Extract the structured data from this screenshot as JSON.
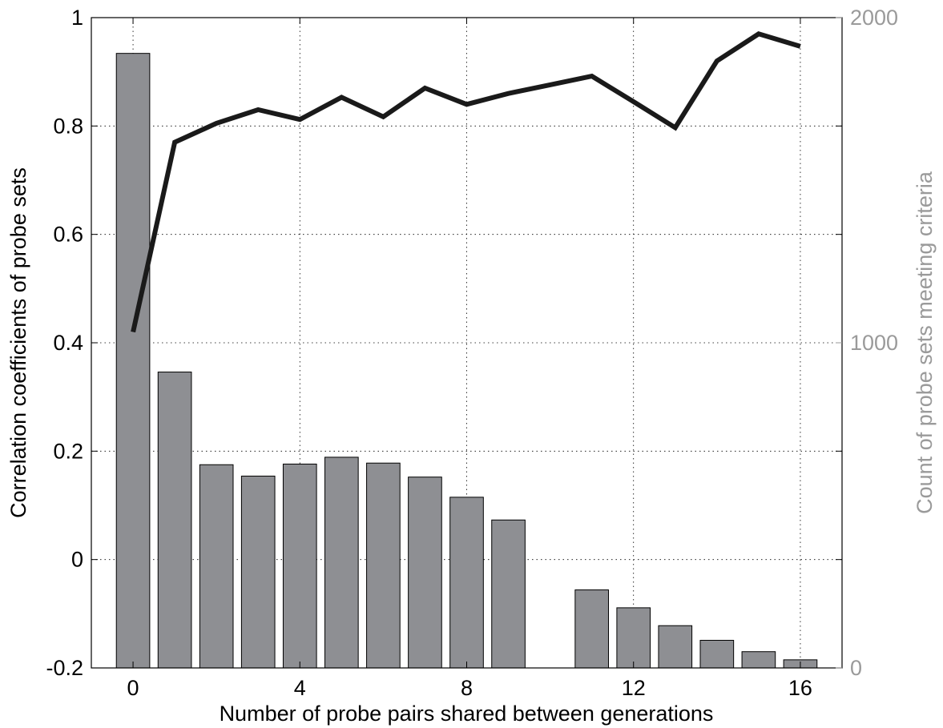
{
  "chart_data": {
    "type": "bar+line",
    "title": "",
    "xlabel": "Number of probe pairs shared between generations",
    "ylabel": "Correlation coefficients of probe sets",
    "y2label": "Count of probe sets meeting criteria",
    "xlim": [
      -1,
      17
    ],
    "ylim": [
      -0.2,
      1.0
    ],
    "y2lim": [
      0,
      2000
    ],
    "xticks": [
      "0",
      "4",
      "8",
      "12",
      "16"
    ],
    "yticks": [
      "-0.2",
      "0",
      "0.2",
      "0.4",
      "0.6",
      "0.8",
      "1"
    ],
    "y2ticks": [
      "0",
      "1000",
      "2000"
    ],
    "grid": true,
    "colors": {
      "bars": "#8e8f93",
      "line": "#1a1a1a",
      "axis_right": "#9a9a9a",
      "axis_left": "#000000"
    },
    "series": [
      {
        "kind": "bar",
        "axis": "right",
        "x": [
          0,
          1,
          2,
          3,
          4,
          5,
          6,
          7,
          8,
          9,
          10,
          11,
          12,
          13,
          14,
          15,
          16
        ],
        "values": [
          1890,
          910,
          625,
          590,
          627,
          648,
          630,
          587,
          525,
          455,
          0,
          240,
          185,
          130,
          85,
          50,
          25
        ]
      },
      {
        "kind": "line",
        "axis": "left",
        "x": [
          0,
          1,
          2,
          3,
          4,
          5,
          6,
          7,
          8,
          9,
          10,
          11,
          12,
          13,
          14,
          15,
          16
        ],
        "values": [
          0.42,
          0.77,
          0.805,
          0.83,
          0.812,
          0.853,
          0.817,
          0.87,
          0.84,
          0.86,
          0.876,
          0.892,
          0.845,
          0.797,
          0.92,
          0.97,
          0.947
        ]
      }
    ]
  }
}
